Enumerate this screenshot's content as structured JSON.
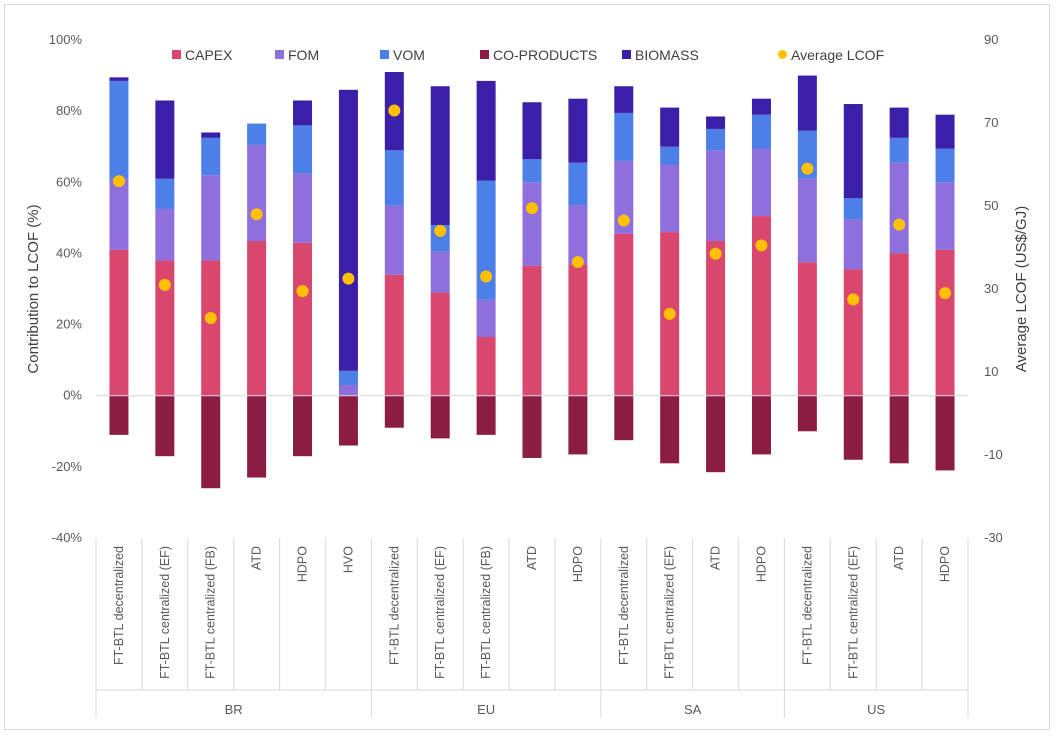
{
  "chart_data": {
    "type": "bar",
    "stacked": true,
    "ylabel": "Contribution to LCOF (%)",
    "y2label": "Average LCOF (US$/GJ)",
    "ylim": [
      -40,
      100
    ],
    "y_ticks": [
      "100%",
      "80%",
      "60%",
      "40%",
      "20%",
      "0%",
      "-20%",
      "-40%"
    ],
    "y2lim": [
      -30,
      90
    ],
    "y2_ticks": [
      "90",
      "70",
      "50",
      "30",
      "10",
      "-10",
      "-30"
    ],
    "groups": [
      {
        "name": "BR",
        "categories": [
          "FT-BTL decentralized",
          "FT-BTL centralized (EF)",
          "FT-BTL centralized (FB)",
          "ATD",
          "HDPO",
          "HVO"
        ]
      },
      {
        "name": "EU",
        "categories": [
          "FT-BTL decentralized",
          "FT-BTL centralized (EF)",
          "FT-BTL centralized (FB)",
          "ATD",
          "HDPO"
        ]
      },
      {
        "name": "SA",
        "categories": [
          "FT-BTL decentralized",
          "FT-BTL centralized (EF)",
          "ATD",
          "HDPO"
        ]
      },
      {
        "name": "US",
        "categories": [
          "FT-BTL decentralized",
          "FT-BTL centralized (EF)",
          "ATD",
          "HDPO"
        ]
      }
    ],
    "series": [
      {
        "name": "CAPEX",
        "color": "#d9476f",
        "values": [
          41,
          38,
          38,
          43.5,
          43,
          0,
          34,
          29,
          16.5,
          36.5,
          37,
          45.5,
          46,
          43.5,
          50.5,
          37.5,
          35.5,
          40,
          41
        ]
      },
      {
        "name": "FOM",
        "color": "#8f6fdc",
        "values": [
          20,
          14.5,
          24,
          27,
          19.5,
          3,
          19.5,
          11.5,
          10.5,
          23.5,
          16.5,
          20.5,
          19,
          25.5,
          19,
          23.5,
          14,
          25.5,
          19
        ]
      },
      {
        "name": "VOM",
        "color": "#4d7fe8",
        "values": [
          27.5,
          8.5,
          10.5,
          6,
          13.5,
          4,
          15.5,
          7.5,
          33.5,
          6.5,
          12,
          13.5,
          5,
          6,
          9.5,
          13.5,
          6,
          7,
          9.5
        ]
      },
      {
        "name": "CO-PRODUCTS",
        "color": "#8b1d42",
        "values": [
          -11,
          -17,
          -26,
          -23,
          -17,
          -14,
          -9,
          -12,
          -11,
          -17.5,
          -16.5,
          -12.5,
          -19,
          -21.5,
          -16.5,
          -10,
          -18,
          -19,
          -21
        ]
      },
      {
        "name": "BIOMASS",
        "color": "#3b1fa8",
        "values": [
          1,
          22,
          1.5,
          0,
          7,
          79,
          22,
          39,
          28,
          16,
          18,
          7.5,
          11,
          3.5,
          4.5,
          15.5,
          26.5,
          8.5,
          9.5
        ]
      }
    ],
    "average_lcof": {
      "name": "Average LCOF",
      "color": "#ffc000",
      "values": [
        56,
        31,
        23,
        48,
        29.5,
        32.5,
        73,
        44,
        33,
        49.5,
        36.5,
        46.5,
        24,
        38.5,
        40.5,
        59,
        27.5,
        45.5,
        29
      ]
    },
    "legend": {
      "position": "top"
    }
  }
}
